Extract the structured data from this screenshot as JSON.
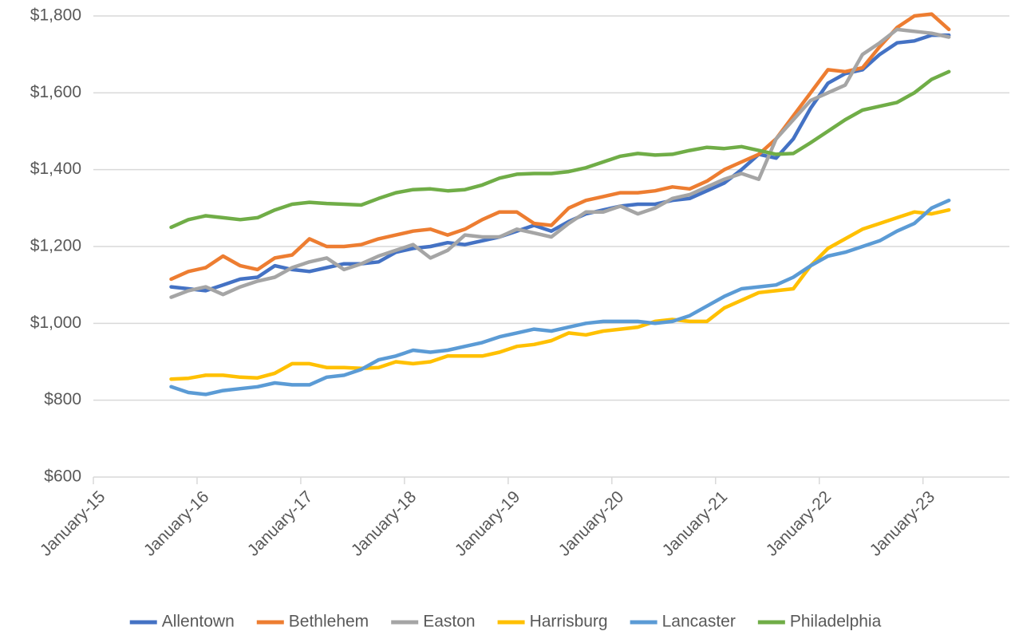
{
  "chart_data": {
    "type": "line",
    "x": [
      "2015-10",
      "2015-12",
      "2016-02",
      "2016-04",
      "2016-06",
      "2016-08",
      "2016-10",
      "2016-12",
      "2017-02",
      "2017-04",
      "2017-06",
      "2017-08",
      "2017-10",
      "2017-12",
      "2018-02",
      "2018-04",
      "2018-06",
      "2018-08",
      "2018-10",
      "2018-12",
      "2019-02",
      "2019-04",
      "2019-06",
      "2019-08",
      "2019-10",
      "2019-12",
      "2020-02",
      "2020-04",
      "2020-06",
      "2020-08",
      "2020-10",
      "2020-12",
      "2021-02",
      "2021-04",
      "2021-06",
      "2021-08",
      "2021-10",
      "2021-12",
      "2022-02",
      "2022-04",
      "2022-06",
      "2022-08",
      "2022-10",
      "2022-12",
      "2023-02",
      "2023-04"
    ],
    "series": [
      {
        "name": "Allentown",
        "color": "#4472c4",
        "values": [
          1095,
          1090,
          1085,
          1100,
          1115,
          1120,
          1150,
          1140,
          1135,
          1145,
          1155,
          1155,
          1160,
          1185,
          1195,
          1200,
          1210,
          1205,
          1215,
          1225,
          1240,
          1255,
          1240,
          1265,
          1285,
          1295,
          1305,
          1310,
          1310,
          1320,
          1325,
          1345,
          1365,
          1400,
          1440,
          1430,
          1480,
          1560,
          1625,
          1650,
          1660,
          1700,
          1730,
          1735,
          1750,
          1750
        ]
      },
      {
        "name": "Bethlehem",
        "color": "#ed7d31",
        "values": [
          1115,
          1135,
          1145,
          1175,
          1150,
          1140,
          1170,
          1178,
          1220,
          1200,
          1200,
          1205,
          1220,
          1230,
          1240,
          1245,
          1230,
          1245,
          1270,
          1290,
          1290,
          1260,
          1255,
          1300,
          1320,
          1330,
          1340,
          1340,
          1345,
          1355,
          1350,
          1370,
          1400,
          1420,
          1440,
          1480,
          1540,
          1600,
          1660,
          1655,
          1665,
          1720,
          1770,
          1800,
          1805,
          1765
        ]
      },
      {
        "name": "Easton",
        "color": "#a5a5a5",
        "values": [
          1068,
          1085,
          1095,
          1075,
          1095,
          1110,
          1120,
          1145,
          1160,
          1170,
          1140,
          1155,
          1175,
          1190,
          1205,
          1170,
          1190,
          1230,
          1225,
          1225,
          1245,
          1235,
          1225,
          1260,
          1290,
          1290,
          1305,
          1285,
          1300,
          1325,
          1335,
          1355,
          1375,
          1390,
          1375,
          1480,
          1530,
          1580,
          1600,
          1620,
          1700,
          1730,
          1765,
          1760,
          1755,
          1745
        ]
      },
      {
        "name": "Harrisburg",
        "color": "#ffc000",
        "values": [
          855,
          857,
          865,
          865,
          860,
          858,
          870,
          895,
          895,
          885,
          885,
          883,
          885,
          900,
          895,
          900,
          915,
          915,
          915,
          925,
          940,
          945,
          955,
          975,
          970,
          980,
          985,
          990,
          1005,
          1010,
          1005,
          1005,
          1040,
          1060,
          1080,
          1085,
          1090,
          1150,
          1195,
          1220,
          1245,
          1260,
          1275,
          1290,
          1285,
          1295
        ]
      },
      {
        "name": "Lancaster",
        "color": "#5b9bd5",
        "values": [
          835,
          820,
          815,
          825,
          830,
          835,
          845,
          840,
          840,
          860,
          865,
          880,
          905,
          915,
          930,
          925,
          930,
          940,
          950,
          965,
          975,
          985,
          980,
          990,
          1000,
          1005,
          1005,
          1005,
          1000,
          1005,
          1020,
          1045,
          1070,
          1090,
          1095,
          1100,
          1120,
          1150,
          1175,
          1185,
          1200,
          1215,
          1240,
          1260,
          1300,
          1320
        ]
      },
      {
        "name": "Philadelphia",
        "color": "#70ad47",
        "values": [
          1250,
          1270,
          1280,
          1275,
          1270,
          1275,
          1295,
          1310,
          1315,
          1312,
          1310,
          1308,
          1325,
          1340,
          1348,
          1350,
          1345,
          1348,
          1360,
          1378,
          1388,
          1390,
          1390,
          1395,
          1405,
          1420,
          1435,
          1442,
          1438,
          1440,
          1450,
          1458,
          1455,
          1460,
          1450,
          1440,
          1442,
          1470,
          1500,
          1530,
          1555,
          1565,
          1575,
          1600,
          1635,
          1655
        ]
      }
    ],
    "xlim": [
      "2015-01",
      "2023-11"
    ],
    "xticks": [
      {
        "value": "2015-01",
        "label": "January-15"
      },
      {
        "value": "2016-01",
        "label": "January-16"
      },
      {
        "value": "2017-01",
        "label": "January-17"
      },
      {
        "value": "2018-01",
        "label": "January-18"
      },
      {
        "value": "2019-01",
        "label": "January-19"
      },
      {
        "value": "2020-01",
        "label": "January-20"
      },
      {
        "value": "2021-01",
        "label": "January-21"
      },
      {
        "value": "2022-01",
        "label": "January-22"
      },
      {
        "value": "2023-01",
        "label": "January-23"
      }
    ],
    "ylim": [
      600,
      1800
    ],
    "yticks": [
      {
        "value": 600,
        "label": "$600"
      },
      {
        "value": 800,
        "label": "$800"
      },
      {
        "value": 1000,
        "label": "$1,000"
      },
      {
        "value": 1200,
        "label": "$1,200"
      },
      {
        "value": 1400,
        "label": "$1,400"
      },
      {
        "value": 1600,
        "label": "$1,600"
      },
      {
        "value": 1800,
        "label": "$1,800"
      }
    ],
    "grid": true,
    "legend": "bottom"
  }
}
